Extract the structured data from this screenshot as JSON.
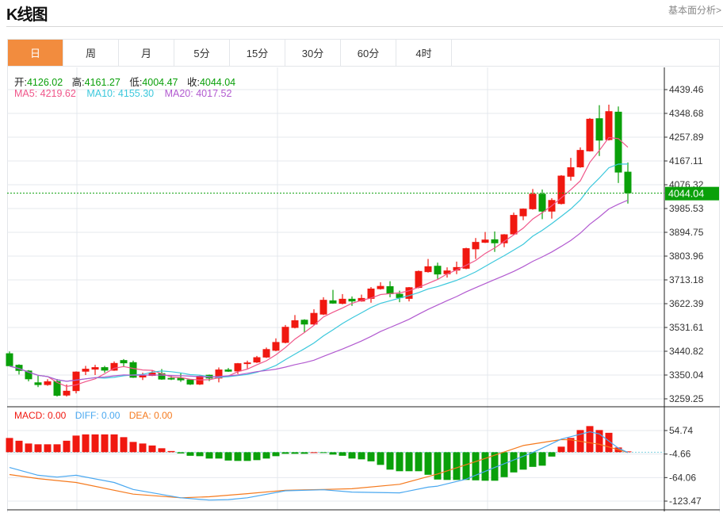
{
  "header": {
    "title": "K线图",
    "link": "基本面分析>"
  },
  "tabs": [
    {
      "label": "日",
      "active": true
    },
    {
      "label": "周"
    },
    {
      "label": "月"
    },
    {
      "label": "5分"
    },
    {
      "label": "15分"
    },
    {
      "label": "30分"
    },
    {
      "label": "60分"
    },
    {
      "label": "4时"
    }
  ],
  "ohlc_legend": {
    "open_label": "开:",
    "open": "4126.02",
    "high_label": "高:",
    "high": "4161.27",
    "low_label": "低:",
    "low": "4004.47",
    "close_label": "收:",
    "close": "4044.04"
  },
  "ma_legend": {
    "ma5": "MA5: 4219.62",
    "ma10": "MA10: 4155.30",
    "ma20": "MA20: 4017.52"
  },
  "macd_legend": {
    "macd": "MACD: 0.00",
    "diff": "DIFF: 0.00",
    "dea": "DEA: 0.00"
  },
  "last_price": "4044.04",
  "colors": {
    "up": "#f01810",
    "down": "#0aa00a",
    "ma5": "#f0568a",
    "ma10": "#3cc8dc",
    "ma20": "#b25ad0",
    "diff": "#4aa8f0",
    "dea": "#f57a1e",
    "accent": "#f28c3e"
  },
  "chart_data": [
    {
      "type": "candlestick",
      "yaxis_ticks": [
        "4439.46",
        "4348.68",
        "4257.89",
        "4167.11",
        "4076.32",
        "3985.53",
        "3894.75",
        "3803.96",
        "3713.18",
        "3622.39",
        "3531.61",
        "3440.82",
        "3350.04",
        "3259.25"
      ],
      "ylim": [
        3259.25,
        4439.46
      ],
      "grid": true,
      "candles": [
        [
          3433,
          3440,
          3384,
          3384
        ],
        [
          3389,
          3391,
          3352,
          3366
        ],
        [
          3367,
          3369,
          3326,
          3334
        ],
        [
          3322,
          3347,
          3304,
          3312
        ],
        [
          3312,
          3334,
          3309,
          3326
        ],
        [
          3327,
          3335,
          3268,
          3271
        ],
        [
          3272,
          3314,
          3268,
          3290
        ],
        [
          3289,
          3364,
          3280,
          3363
        ],
        [
          3363,
          3385,
          3350,
          3374
        ],
        [
          3371,
          3389,
          3350,
          3380
        ],
        [
          3380,
          3385,
          3359,
          3367
        ],
        [
          3367,
          3402,
          3366,
          3396
        ],
        [
          3407,
          3411,
          3380,
          3395
        ],
        [
          3399,
          3405,
          3339,
          3340
        ],
        [
          3341,
          3359,
          3331,
          3349
        ],
        [
          3347,
          3369,
          3346,
          3359
        ],
        [
          3357,
          3373,
          3332,
          3333
        ],
        [
          3339,
          3350,
          3331,
          3333
        ],
        [
          3339,
          3359,
          3324,
          3330
        ],
        [
          3333,
          3334,
          3312,
          3314
        ],
        [
          3314,
          3348,
          3312,
          3347
        ],
        [
          3351,
          3352,
          3327,
          3337
        ],
        [
          3337,
          3379,
          3322,
          3371
        ],
        [
          3371,
          3377,
          3362,
          3363
        ],
        [
          3364,
          3396,
          3354,
          3395
        ],
        [
          3392,
          3405,
          3375,
          3398
        ],
        [
          3398,
          3423,
          3396,
          3418
        ],
        [
          3417,
          3455,
          3415,
          3449
        ],
        [
          3443,
          3490,
          3441,
          3476
        ],
        [
          3473,
          3541,
          3471,
          3534
        ],
        [
          3530,
          3579,
          3528,
          3559
        ],
        [
          3561,
          3563,
          3513,
          3543
        ],
        [
          3543,
          3601,
          3541,
          3587
        ],
        [
          3581,
          3647,
          3579,
          3637
        ],
        [
          3635,
          3675,
          3622,
          3623
        ],
        [
          3622,
          3659,
          3620,
          3641
        ],
        [
          3641,
          3650,
          3614,
          3631
        ],
        [
          3631,
          3657,
          3630,
          3644
        ],
        [
          3641,
          3686,
          3626,
          3680
        ],
        [
          3678,
          3704,
          3676,
          3690
        ],
        [
          3689,
          3708,
          3647,
          3659
        ],
        [
          3660,
          3672,
          3628,
          3644
        ],
        [
          3641,
          3686,
          3631,
          3685
        ],
        [
          3683,
          3749,
          3681,
          3747
        ],
        [
          3743,
          3793,
          3741,
          3765
        ],
        [
          3767,
          3779,
          3717,
          3734
        ],
        [
          3735,
          3761,
          3722,
          3749
        ],
        [
          3749,
          3783,
          3735,
          3762
        ],
        [
          3756,
          3836,
          3754,
          3834
        ],
        [
          3830,
          3873,
          3793,
          3858
        ],
        [
          3855,
          3896,
          3854,
          3867
        ],
        [
          3868,
          3898,
          3820,
          3853
        ],
        [
          3853,
          3888,
          3838,
          3887
        ],
        [
          3887,
          3970,
          3885,
          3961
        ],
        [
          3956,
          3986,
          3941,
          3985
        ],
        [
          3983,
          4060,
          3981,
          4042
        ],
        [
          4042,
          4058,
          3945,
          3974
        ],
        [
          3974,
          4025,
          3947,
          4018
        ],
        [
          4003,
          4113,
          4001,
          4111
        ],
        [
          4107,
          4179,
          4092,
          4143
        ],
        [
          4143,
          4219,
          4141,
          4209
        ],
        [
          4204,
          4331,
          4203,
          4328
        ],
        [
          4330,
          4380,
          4186,
          4245
        ],
        [
          4247,
          4382,
          4245,
          4357
        ],
        [
          4355,
          4375,
          4083,
          4123
        ],
        [
          4126.02,
          4161.27,
          4004.47,
          4044.04
        ]
      ],
      "candle_fields": [
        "open",
        "high",
        "low",
        "close"
      ]
    },
    {
      "type": "macd",
      "yaxis_ticks": [
        "54.74",
        "-4.66",
        "-64.06",
        "-123.47"
      ],
      "ylim": [
        -123.47,
        54.74
      ],
      "histogram": [
        36,
        29,
        22,
        20,
        20,
        20,
        29,
        42,
        45,
        45,
        45,
        45,
        38,
        26,
        22,
        17,
        10,
        3,
        -3,
        -9,
        -10,
        -16,
        -16,
        -21,
        -22,
        -22,
        -20,
        -16,
        -10,
        -4,
        -4,
        -4,
        0,
        -1,
        -6,
        -9,
        -16,
        -18,
        -23,
        -32,
        -44,
        -48,
        -48,
        -48,
        -57,
        -69,
        -70,
        -70,
        -70,
        -71,
        -72,
        -72,
        -63,
        -51,
        -44,
        -37,
        -34,
        -11,
        14,
        36,
        56,
        66,
        56,
        49,
        12,
        2
      ],
      "diff": [
        [
          1,
          -38.6
        ],
        [
          4,
          -58.2
        ],
        [
          6,
          -62.8
        ],
        [
          8,
          -58.2
        ],
        [
          12,
          -76.5
        ],
        [
          14,
          -94.1
        ],
        [
          19,
          -115.0
        ],
        [
          22,
          -120.9
        ],
        [
          24,
          -119.6
        ],
        [
          26,
          -115.0
        ],
        [
          30,
          -97.4
        ],
        [
          34,
          -94.8
        ],
        [
          37,
          -100.7
        ],
        [
          42,
          -102.6
        ],
        [
          45,
          -88.3
        ],
        [
          46,
          -85.6
        ],
        [
          49,
          -68.0
        ],
        [
          52,
          -38.6
        ],
        [
          56,
          -0.8
        ],
        [
          57,
          10.3
        ],
        [
          59,
          33.2
        ],
        [
          62,
          51.5
        ],
        [
          63,
          46.2
        ],
        [
          65,
          10.3
        ],
        [
          66,
          -0.8
        ]
      ],
      "dea": [
        [
          1,
          -56.3
        ],
        [
          4,
          -66.7
        ],
        [
          8,
          -76.5
        ],
        [
          14,
          -105.9
        ],
        [
          19,
          -115.0
        ],
        [
          22,
          -112.4
        ],
        [
          26,
          -104.6
        ],
        [
          30,
          -96.1
        ],
        [
          34,
          -94.1
        ],
        [
          37,
          -92.2
        ],
        [
          42,
          -81.1
        ],
        [
          46,
          -55.0
        ],
        [
          51,
          -15.8
        ],
        [
          55,
          16.9
        ],
        [
          59,
          31.9
        ],
        [
          60,
          31.3
        ],
        [
          63,
          20.1
        ],
        [
          66,
          -0.8
        ]
      ]
    }
  ]
}
